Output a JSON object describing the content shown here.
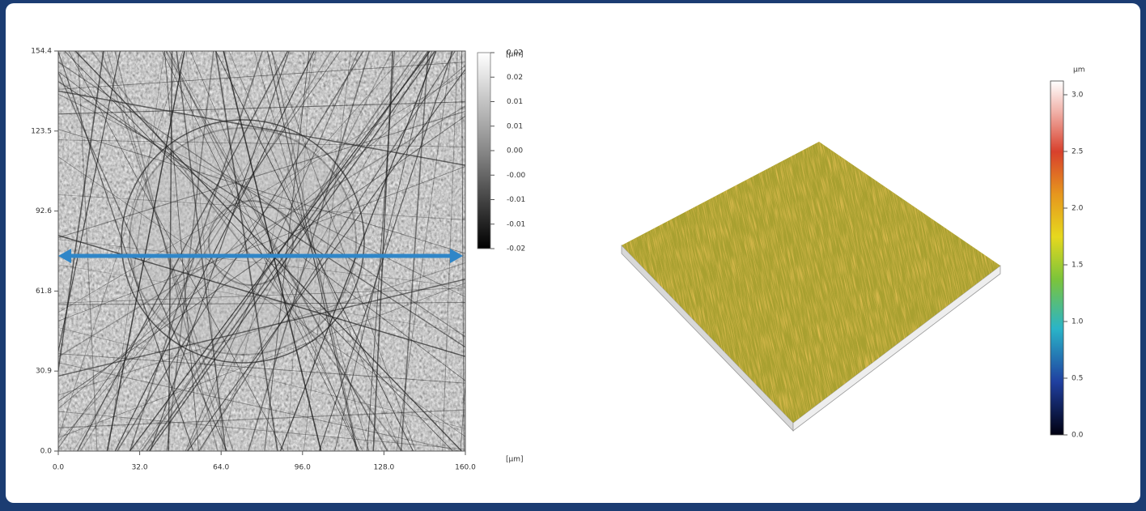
{
  "left_image": {
    "y_ticks": [
      "154.4",
      "123.5",
      "92.6",
      "61.8",
      "30.9",
      "0.0"
    ],
    "x_ticks": [
      "0.0",
      "32.0",
      "64.0",
      "96.0",
      "128.0",
      "160.0"
    ],
    "x_unit": "[μm]",
    "colorbar_ticks": [
      "0.02",
      "0.02",
      "0.01",
      "0.01",
      "0.00",
      "-0.00",
      "-0.01",
      "-0.01",
      "-0.02"
    ],
    "colorbar_unit": "[μm]"
  },
  "right_image": {
    "colorbar_unit": "μm",
    "colorbar_ticks": [
      "3.0",
      "2.5",
      "2.0",
      "1.5",
      "1.0",
      "0.5",
      "0.0"
    ]
  }
}
